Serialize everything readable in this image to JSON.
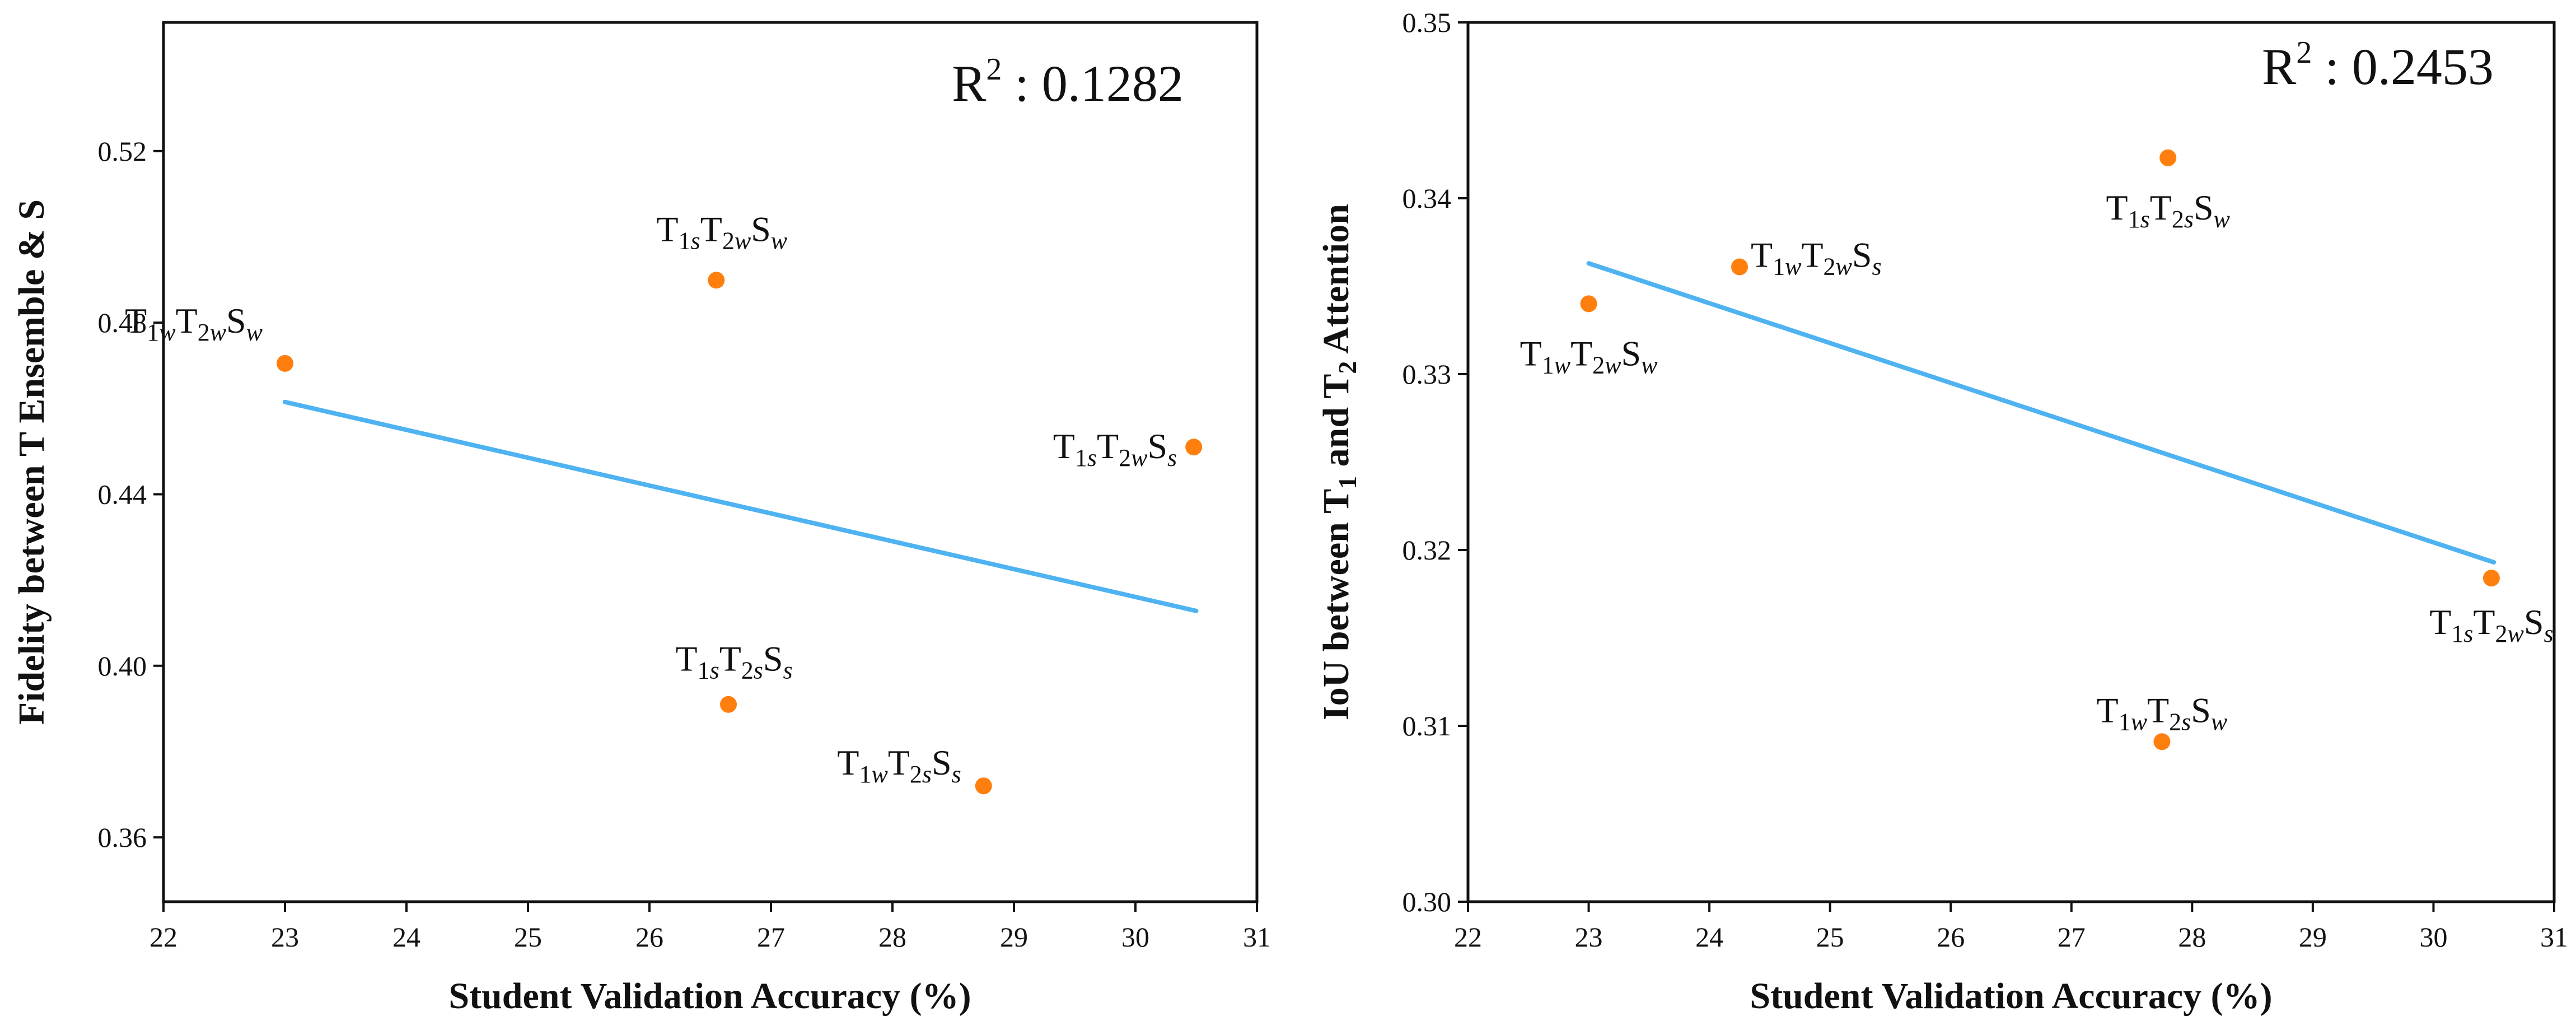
{
  "colors": {
    "points": "#FF7F0E",
    "trend": "#4EB3F0",
    "axis": "#111111"
  },
  "chart_data": [
    {
      "type": "scatter",
      "xlabel": "Student Validation Accuracy (%)",
      "ylabel": "Fidelity between T Ensemble & S",
      "xlim": [
        22,
        31
      ],
      "ylim": [
        0.345,
        0.55
      ],
      "xticks": [
        "22",
        "23",
        "24",
        "25",
        "26",
        "27",
        "28",
        "29",
        "30",
        "31"
      ],
      "yticks": [
        "0.36",
        "0.40",
        "0.44",
        "0.48",
        "0.52"
      ],
      "r2_text": "R",
      "r2_sup": "2",
      "r2_value": " : 0.1282",
      "trend": {
        "x": [
          23.0,
          30.5
        ],
        "y": [
          0.4615,
          0.4128
        ]
      },
      "points": [
        {
          "x": 23.0,
          "y": 0.4705,
          "label": [
            "T",
            "1w",
            "T",
            "2w",
            "S",
            "w"
          ]
        },
        {
          "x": 26.55,
          "y": 0.4899,
          "label": [
            "T",
            "1s",
            "T",
            "2w",
            "S",
            "w"
          ]
        },
        {
          "x": 30.48,
          "y": 0.451,
          "label": [
            "T",
            "1s",
            "T",
            "2w",
            "S",
            "s"
          ]
        },
        {
          "x": 26.65,
          "y": 0.391,
          "label": [
            "T",
            "1s",
            "T",
            "2s",
            "S",
            "s"
          ]
        },
        {
          "x": 28.75,
          "y": 0.372,
          "label": [
            "T",
            "1w",
            "T",
            "2s",
            "S",
            "s"
          ]
        }
      ]
    },
    {
      "type": "scatter",
      "xlabel": "Student Validation Accuracy (%)",
      "ylabel": "IoU between T1 and T2 Attention",
      "xlim": [
        22,
        31
      ],
      "ylim": [
        0.3,
        0.35
      ],
      "xticks": [
        "22",
        "23",
        "24",
        "25",
        "26",
        "27",
        "28",
        "29",
        "30",
        "31"
      ],
      "yticks": [
        "0.30",
        "0.31",
        "0.32",
        "0.33",
        "0.34",
        "0.35"
      ],
      "r2_text": "R",
      "r2_sup": "2",
      "r2_value": " : 0.2453",
      "trend": {
        "x": [
          23.0,
          30.5
        ],
        "y": [
          0.3363,
          0.3193
        ]
      },
      "points": [
        {
          "x": 23.0,
          "y": 0.334,
          "label": [
            "T",
            "1w",
            "T",
            "2w",
            "S",
            "w"
          ]
        },
        {
          "x": 24.25,
          "y": 0.3361,
          "label": [
            "T",
            "1w",
            "T",
            "2w",
            "S",
            "s"
          ]
        },
        {
          "x": 27.8,
          "y": 0.3423,
          "label": [
            "T",
            "1s",
            "T",
            "2s",
            "S",
            "w"
          ]
        },
        {
          "x": 30.48,
          "y": 0.3184,
          "label": [
            "T",
            "1s",
            "T",
            "2w",
            "S",
            "s"
          ]
        },
        {
          "x": 27.75,
          "y": 0.3091,
          "label": [
            "T",
            "1w",
            "T",
            "2s",
            "S",
            "w"
          ]
        }
      ]
    }
  ]
}
